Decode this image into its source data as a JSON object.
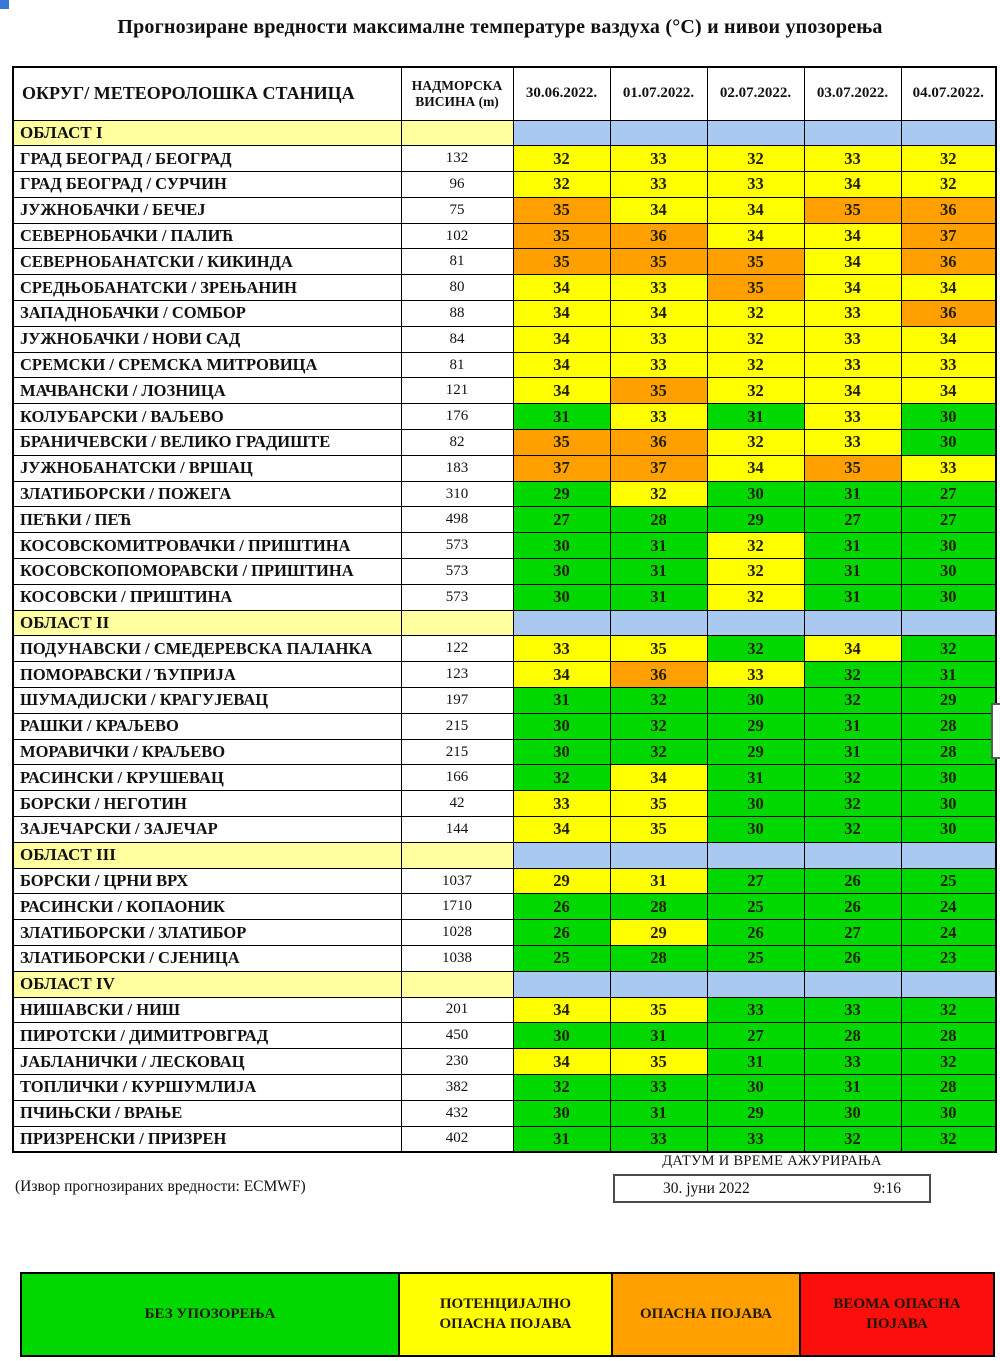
{
  "title": "Прогнозиране вредности максималне температуре ваздуха (°С) и нивои упозорења",
  "table": {
    "col_headers": [
      "ОКРУГ/ МЕТЕОРОЛОШКА СТАНИЦА",
      "НАДМОРСКА ВИСИНА (m)",
      "30.06.2022.",
      "01.07.2022.",
      "02.07.2022.",
      "03.07.2022.",
      "04.07.2022."
    ]
  },
  "sections": [
    {
      "label": "ОБЛАСТ I",
      "rows": [
        {
          "station": "ГРАД БЕОГРАД / БЕОГРАД",
          "altitude": "132",
          "temps": [
            32,
            33,
            32,
            33,
            32
          ],
          "levels": [
            "Y",
            "Y",
            "Y",
            "Y",
            "Y"
          ]
        },
        {
          "station": "ГРАД БЕОГРАД / СУРЧИН",
          "altitude": "96",
          "temps": [
            32,
            33,
            33,
            34,
            32
          ],
          "levels": [
            "Y",
            "Y",
            "Y",
            "Y",
            "Y"
          ]
        },
        {
          "station": "ЈУЖНОБАЧКИ / БЕЧЕЈ",
          "altitude": "75",
          "temps": [
            35,
            34,
            34,
            35,
            36
          ],
          "levels": [
            "O",
            "Y",
            "Y",
            "O",
            "O"
          ]
        },
        {
          "station": "СЕВЕРНОБАЧКИ / ПАЛИЋ",
          "altitude": "102",
          "temps": [
            35,
            36,
            34,
            34,
            37
          ],
          "levels": [
            "O",
            "O",
            "Y",
            "Y",
            "O"
          ]
        },
        {
          "station": "СЕВЕРНОБАНАТСКИ / КИКИНДА",
          "altitude": "81",
          "temps": [
            35,
            35,
            35,
            34,
            36
          ],
          "levels": [
            "O",
            "O",
            "O",
            "Y",
            "O"
          ]
        },
        {
          "station": "СРЕДЊОБАНАТСКИ / ЗРЕЊАНИН",
          "altitude": "80",
          "temps": [
            34,
            33,
            35,
            34,
            34
          ],
          "levels": [
            "Y",
            "Y",
            "O",
            "Y",
            "Y"
          ]
        },
        {
          "station": "ЗАПАДНОБАЧКИ / СОМБОР",
          "altitude": "88",
          "temps": [
            34,
            34,
            32,
            33,
            36
          ],
          "levels": [
            "Y",
            "Y",
            "Y",
            "Y",
            "O"
          ]
        },
        {
          "station": "ЈУЖНОБАЧКИ / НОВИ САД",
          "altitude": "84",
          "temps": [
            34,
            33,
            32,
            33,
            34
          ],
          "levels": [
            "Y",
            "Y",
            "Y",
            "Y",
            "Y"
          ]
        },
        {
          "station": "СРЕМСКИ / СРЕМСКА МИТРОВИЦА",
          "altitude": "81",
          "temps": [
            34,
            33,
            32,
            33,
            33
          ],
          "levels": [
            "Y",
            "Y",
            "Y",
            "Y",
            "Y"
          ]
        },
        {
          "station": "МАЧВАНСКИ / ЛОЗНИЦА",
          "altitude": "121",
          "temps": [
            34,
            35,
            32,
            34,
            34
          ],
          "levels": [
            "Y",
            "O",
            "Y",
            "Y",
            "Y"
          ]
        },
        {
          "station": "КОЛУБАРСКИ / ВАЉЕВО",
          "altitude": "176",
          "temps": [
            31,
            33,
            31,
            33,
            30
          ],
          "levels": [
            "G",
            "Y",
            "G",
            "Y",
            "G"
          ]
        },
        {
          "station": "БРАНИЧЕВСКИ / ВЕЛИКО ГРАДИШТЕ",
          "altitude": "82",
          "temps": [
            35,
            36,
            32,
            33,
            30
          ],
          "levels": [
            "O",
            "O",
            "Y",
            "Y",
            "G"
          ]
        },
        {
          "station": "ЈУЖНОБАНАТСКИ / ВРШАЦ",
          "altitude": "183",
          "temps": [
            37,
            37,
            34,
            35,
            33
          ],
          "levels": [
            "O",
            "O",
            "Y",
            "O",
            "Y"
          ]
        },
        {
          "station": "ЗЛАТИБОРСКИ / ПОЖЕГА",
          "altitude": "310",
          "temps": [
            29,
            32,
            30,
            31,
            27
          ],
          "levels": [
            "G",
            "Y",
            "G",
            "G",
            "G"
          ]
        },
        {
          "station": "ПЕЋКИ / ПЕЋ",
          "altitude": "498",
          "temps": [
            27,
            28,
            29,
            27,
            27
          ],
          "levels": [
            "G",
            "G",
            "G",
            "G",
            "G"
          ]
        },
        {
          "station": "КОСОВСКОМИТРОВАЧКИ / ПРИШТИНА",
          "altitude": "573",
          "temps": [
            30,
            31,
            32,
            31,
            30
          ],
          "levels": [
            "G",
            "G",
            "Y",
            "G",
            "G"
          ]
        },
        {
          "station": "КОСОВСКОПОМОРАВСКИ / ПРИШТИНА",
          "altitude": "573",
          "temps": [
            30,
            31,
            32,
            31,
            30
          ],
          "levels": [
            "G",
            "G",
            "Y",
            "G",
            "G"
          ]
        },
        {
          "station": "КОСОВСКИ / ПРИШТИНА",
          "altitude": "573",
          "temps": [
            30,
            31,
            32,
            31,
            30
          ],
          "levels": [
            "G",
            "G",
            "Y",
            "G",
            "G"
          ]
        }
      ]
    },
    {
      "label": "ОБЛАСТ II",
      "rows": [
        {
          "station": "ПОДУНАВСКИ / СМЕДЕРЕВСКА ПАЛАНКА",
          "altitude": "122",
          "temps": [
            33,
            35,
            32,
            34,
            32
          ],
          "levels": [
            "Y",
            "Y",
            "G",
            "Y",
            "G"
          ]
        },
        {
          "station": "ПОМОРАВСКИ / ЋУПРИЈА",
          "altitude": "123",
          "temps": [
            34,
            36,
            33,
            32,
            31
          ],
          "levels": [
            "Y",
            "O",
            "Y",
            "G",
            "G"
          ]
        },
        {
          "station": "ШУМАДИЈСКИ / КРАГУЈЕВАЦ",
          "altitude": "197",
          "temps": [
            31,
            32,
            30,
            32,
            29
          ],
          "levels": [
            "G",
            "G",
            "G",
            "G",
            "G"
          ]
        },
        {
          "station": "РАШКИ / КРАЉЕВО",
          "altitude": "215",
          "temps": [
            30,
            32,
            29,
            31,
            28
          ],
          "levels": [
            "G",
            "G",
            "G",
            "G",
            "G"
          ]
        },
        {
          "station": "МОРАВИЧКИ / КРАЉЕВО",
          "altitude": "215",
          "temps": [
            30,
            32,
            29,
            31,
            28
          ],
          "levels": [
            "G",
            "G",
            "G",
            "G",
            "G"
          ]
        },
        {
          "station": "РАСИНСКИ / КРУШЕВАЦ",
          "altitude": "166",
          "temps": [
            32,
            34,
            31,
            32,
            30
          ],
          "levels": [
            "G",
            "Y",
            "G",
            "G",
            "G"
          ]
        },
        {
          "station": "БОРСКИ / НЕГОТИН",
          "altitude": "42",
          "temps": [
            33,
            35,
            30,
            32,
            30
          ],
          "levels": [
            "Y",
            "Y",
            "G",
            "G",
            "G"
          ]
        },
        {
          "station": "ЗАЈЕЧАРСКИ / ЗАЈЕЧАР",
          "altitude": "144",
          "temps": [
            34,
            35,
            30,
            32,
            30
          ],
          "levels": [
            "Y",
            "Y",
            "G",
            "G",
            "G"
          ]
        }
      ]
    },
    {
      "label": "ОБЛАСТ III",
      "rows": [
        {
          "station": "БОРСКИ / ЦРНИ ВРХ",
          "altitude": "1037",
          "temps": [
            29,
            31,
            27,
            26,
            25
          ],
          "levels": [
            "Y",
            "Y",
            "G",
            "G",
            "G"
          ]
        },
        {
          "station": "РАСИНСКИ / КОПАОНИК",
          "altitude": "1710",
          "temps": [
            26,
            28,
            25,
            26,
            24
          ],
          "levels": [
            "G",
            "G",
            "G",
            "G",
            "G"
          ]
        },
        {
          "station": "ЗЛАТИБОРСКИ / ЗЛАТИБОР",
          "altitude": "1028",
          "temps": [
            26,
            29,
            26,
            27,
            24
          ],
          "levels": [
            "G",
            "Y",
            "G",
            "G",
            "G"
          ]
        },
        {
          "station": "ЗЛАТИБОРСКИ / СЈЕНИЦА",
          "altitude": "1038",
          "temps": [
            25,
            28,
            25,
            26,
            23
          ],
          "levels": [
            "G",
            "G",
            "G",
            "G",
            "G"
          ]
        }
      ]
    },
    {
      "label": "ОБЛАСТ IV",
      "rows": [
        {
          "station": "НИШАВСКИ / НИШ",
          "altitude": "201",
          "temps": [
            34,
            35,
            33,
            33,
            32
          ],
          "levels": [
            "Y",
            "Y",
            "G",
            "G",
            "G"
          ]
        },
        {
          "station": "ПИРОТСКИ / ДИМИТРОВГРАД",
          "altitude": "450",
          "temps": [
            30,
            31,
            27,
            28,
            28
          ],
          "levels": [
            "G",
            "G",
            "G",
            "G",
            "G"
          ]
        },
        {
          "station": "ЈАБЛАНИЧКИ / ЛЕСКОВАЦ",
          "altitude": "230",
          "temps": [
            34,
            35,
            31,
            33,
            32
          ],
          "levels": [
            "Y",
            "Y",
            "G",
            "G",
            "G"
          ]
        },
        {
          "station": "ТОПЛИЧКИ / КУРШУМЛИЈА",
          "altitude": "382",
          "temps": [
            32,
            33,
            30,
            31,
            28
          ],
          "levels": [
            "G",
            "G",
            "G",
            "G",
            "G"
          ]
        },
        {
          "station": "ПЧИЊСКИ / ВРАЊЕ",
          "altitude": "432",
          "temps": [
            30,
            31,
            29,
            30,
            30
          ],
          "levels": [
            "G",
            "G",
            "G",
            "G",
            "G"
          ]
        },
        {
          "station": "ПРИЗРЕНСКИ / ПРИЗРЕН",
          "altitude": "402",
          "temps": [
            31,
            33,
            33,
            32,
            32
          ],
          "levels": [
            "G",
            "G",
            "G",
            "G",
            "G"
          ]
        }
      ]
    }
  ],
  "footer": {
    "update_caption": "ДАТУМ И ВРЕМЕ АЖУРИРАЊА",
    "update_date": "30. јуни 2022",
    "update_time": "9:16",
    "source_note": "(Извор прогнозираних вредности: ECMWF)"
  },
  "legend": {
    "items": [
      {
        "label": "БЕЗ УПОЗОРЕЊА",
        "color": "green"
      },
      {
        "label": "ПОТЕНЦИЈАЛНО ОПАСНА ПОЈАВА",
        "color": "yellow"
      },
      {
        "label": "ОПАСНА ПОЈАВА",
        "color": "orange"
      },
      {
        "label": "ВЕОМА ОПАСНА ПОЈАВА",
        "color": "red"
      }
    ]
  },
  "colors": {
    "green": "#00D800",
    "yellow": "#FFFF00",
    "orange": "#FFA000",
    "red": "#FB0E0C",
    "blue": "#A9C9F0",
    "paleyellow": "#FFFFA0"
  }
}
